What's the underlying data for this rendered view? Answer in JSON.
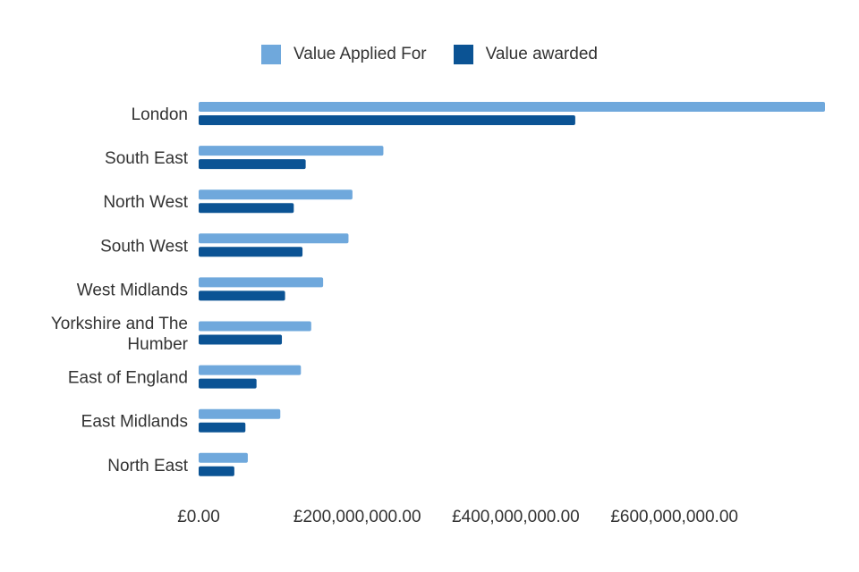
{
  "chart_data": {
    "type": "bar",
    "orientation": "horizontal",
    "categories": [
      "London",
      "South East",
      "North West",
      "South West",
      "West Midlands",
      "Yorkshire and The Humber",
      "East of England",
      "East Midlands",
      "North East"
    ],
    "category_lines": [
      [
        "London"
      ],
      [
        "South East"
      ],
      [
        "North West"
      ],
      [
        "South West"
      ],
      [
        "West Midlands"
      ],
      [
        "Yorkshire and The",
        "Humber"
      ],
      [
        "East of England"
      ],
      [
        "East Midlands"
      ],
      [
        "North East"
      ]
    ],
    "series": [
      {
        "name": "Value Applied For",
        "color": "#6fa8dc",
        "values": [
          790000000,
          233000000,
          194000000,
          189000000,
          157000000,
          142000000,
          129000000,
          103000000,
          62000000
        ]
      },
      {
        "name": "Value awarded",
        "color": "#0b5394",
        "values": [
          475000000,
          135000000,
          120000000,
          131000000,
          109000000,
          105000000,
          73000000,
          59000000,
          45000000
        ]
      }
    ],
    "xlim": [
      0,
      790000000
    ],
    "xticks": [
      0,
      200000000,
      400000000,
      600000000
    ],
    "xtick_labels": [
      "£0.00",
      "£200,000,000.00",
      "£400,000,000.00",
      "£600,000,000.00"
    ],
    "legend_position": "top-center",
    "grid": false
  }
}
